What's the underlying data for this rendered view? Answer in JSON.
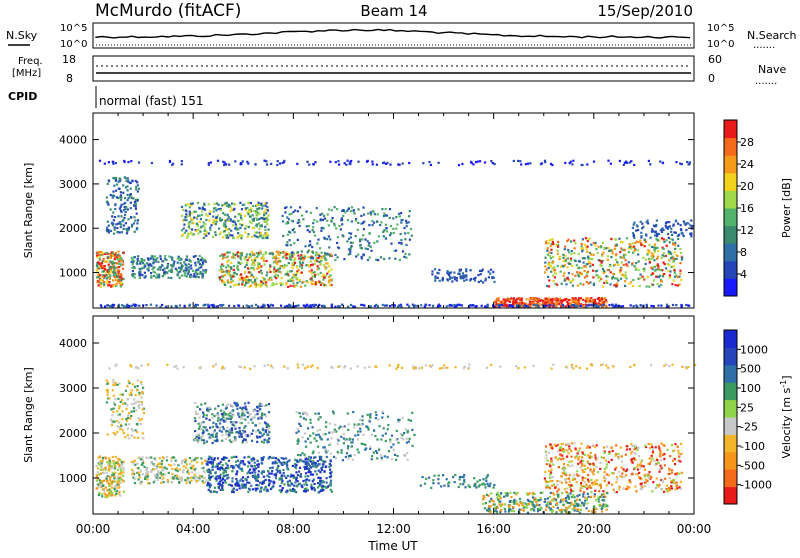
{
  "header": {
    "station": "McMurdo (fitACF)",
    "beam": "Beam 14",
    "date": "15/Sep/2010"
  },
  "aux_panels": {
    "nsky_label": "N.Sky",
    "nsearch_label": "N.Search",
    "freq_label_1": "Freq.",
    "freq_label_2": "[MHz]",
    "nave_label": "Nave",
    "cpid_label": "CPID",
    "cpid_value": "normal (fast) 151",
    "dots": "......."
  },
  "colors": {
    "power_scale": [
      "#1a1aff",
      "#2545b8",
      "#2f6fa8",
      "#3a8a70",
      "#52b36a",
      "#9fd84a",
      "#f2d21a",
      "#f59a1a",
      "#f26a1a",
      "#e81a1a"
    ],
    "velocity_scale": [
      "#e81a1a",
      "#f26a1a",
      "#f5951a",
      "#f2b52a",
      "#c8c8c8",
      "#8fd44a",
      "#3a9a60",
      "#2f6fa8",
      "#2545b8",
      "#1a2ad0"
    ]
  },
  "chart_data": [
    {
      "type": "line",
      "panel": "N.Sky / N.Search",
      "ytick_labels_left": [
        "10^5",
        "10^0"
      ],
      "ytick_labels_right": [
        "10^5",
        "10^0"
      ]
    },
    {
      "type": "line",
      "panel": "Freq. / Nave",
      "ytick_labels_left": [
        "18",
        "8"
      ],
      "ytick_labels_right": [
        "60",
        "0"
      ]
    },
    {
      "type": "heatmap",
      "panel": "Power",
      "ylabel": "Slant Range [km]",
      "yticks": [
        1000,
        2000,
        3000,
        4000
      ],
      "ylim": [
        200,
        4600
      ],
      "xlim": [
        0,
        24
      ],
      "colorbar_label": "Power [dB]",
      "colorbar_ticks": [
        "4",
        "8",
        "12",
        "16",
        "20",
        "24",
        "28"
      ]
    },
    {
      "type": "heatmap",
      "panel": "Velocity",
      "ylabel": "Slant Range [km]",
      "yticks": [
        1000,
        2000,
        3000,
        4000
      ],
      "ylim": [
        200,
        4600
      ],
      "xlim": [
        0,
        24
      ],
      "xticks": [
        "00:00",
        "04:00",
        "08:00",
        "12:00",
        "16:00",
        "20:00",
        "00:00"
      ],
      "xlabel": "Time UT",
      "colorbar_label": "Velocity [m s",
      "colorbar_label_sup": "-1",
      "colorbar_label_end": "]",
      "colorbar_ticks": [
        "-1000",
        "-500",
        "-100",
        "-25",
        "25",
        "100",
        "500",
        "1000"
      ]
    }
  ]
}
